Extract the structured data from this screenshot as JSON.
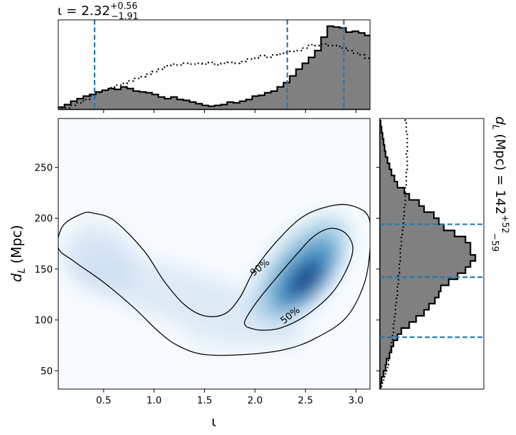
{
  "chart_data": {
    "type": "corner",
    "panels": {
      "joint": {
        "type": "heatmap",
        "xlabel": "ι",
        "ylabel": "d_L (Mpc)",
        "xlim": [
          0.05,
          3.14
        ],
        "ylim": [
          32,
          298
        ],
        "xticks": [
          0.5,
          1.0,
          1.5,
          2.0,
          2.5,
          3.0
        ],
        "xtick_labels": [
          "0.5",
          "1.0",
          "1.5",
          "2.0",
          "2.5",
          "3.0"
        ],
        "yticks": [
          50,
          100,
          150,
          200,
          250
        ],
        "ytick_labels": [
          "50",
          "100",
          "150",
          "200",
          "250"
        ],
        "colormap": "Blues",
        "peak": {
          "x": 2.5,
          "y": 140
        },
        "contours": [
          {
            "label": "90%",
            "label_pos": {
              "x": 1.95,
              "y": 147
            },
            "path": [
              [
                0.4,
                205
              ],
              [
                0.6,
                198
              ],
              [
                0.9,
                168
              ],
              [
                1.1,
                138
              ],
              [
                1.3,
                115
              ],
              [
                1.5,
                104
              ],
              [
                1.7,
                106
              ],
              [
                1.85,
                122
              ],
              [
                2.0,
                150
              ],
              [
                2.25,
                181
              ],
              [
                2.5,
                203
              ],
              [
                2.8,
                213
              ],
              [
                3.0,
                211
              ],
              [
                3.13,
                200
              ],
              [
                3.14,
                170
              ],
              [
                3.08,
                135
              ],
              [
                2.9,
                102
              ],
              [
                2.6,
                82
              ],
              [
                2.3,
                71
              ],
              [
                1.9,
                66
              ],
              [
                1.5,
                66
              ],
              [
                1.25,
                74
              ],
              [
                1.05,
                88
              ],
              [
                0.8,
                112
              ],
              [
                0.5,
                137
              ],
              [
                0.2,
                158
              ],
              [
                0.05,
                171
              ],
              [
                0.1,
                193
              ],
              [
                0.3,
                205
              ],
              [
                0.4,
                205
              ]
            ]
          },
          {
            "label": "50%",
            "label_pos": {
              "x": 2.25,
              "y": 100
            },
            "path": [
              [
                1.92,
                93
              ],
              [
                2.05,
                90
              ],
              [
                2.25,
                92
              ],
              [
                2.5,
                104
              ],
              [
                2.75,
                125
              ],
              [
                2.9,
                148
              ],
              [
                2.97,
                170
              ],
              [
                2.9,
                185
              ],
              [
                2.75,
                190
              ],
              [
                2.58,
                182
              ],
              [
                2.4,
                163
              ],
              [
                2.2,
                140
              ],
              [
                2.02,
                118
              ],
              [
                1.9,
                99
              ],
              [
                1.92,
                93
              ]
            ]
          }
        ]
      },
      "top_marginal": {
        "type": "histogram",
        "title_prefix": "ι = ",
        "median": "2.32",
        "upper": "+0.56",
        "lower": "−1.91",
        "ylim": [
          0,
          1
        ],
        "x_edges_start": 0.05,
        "bin_width": 0.062,
        "posterior_heights": [
          0.03,
          0.06,
          0.1,
          0.13,
          0.16,
          0.18,
          0.21,
          0.23,
          0.25,
          0.24,
          0.27,
          0.25,
          0.22,
          0.21,
          0.2,
          0.18,
          0.15,
          0.13,
          0.15,
          0.12,
          0.11,
          0.09,
          0.07,
          0.05,
          0.04,
          0.05,
          0.06,
          0.09,
          0.08,
          0.1,
          0.12,
          0.16,
          0.17,
          0.2,
          0.22,
          0.27,
          0.32,
          0.4,
          0.48,
          0.55,
          0.62,
          0.7,
          0.86,
          0.99,
          0.98,
          0.97,
          0.92,
          0.93,
          0.91,
          0.88,
          0.82,
          0.74,
          0.64,
          0.53,
          0.42,
          0.35,
          0.22,
          0.16,
          0.09,
          0.05,
          0.02,
          0.01
        ],
        "prior_heights": [
          0.01,
          0.02,
          0.05,
          0.08,
          0.12,
          0.16,
          0.2,
          0.23,
          0.26,
          0.29,
          0.31,
          0.34,
          0.37,
          0.39,
          0.42,
          0.45,
          0.48,
          0.52,
          0.54,
          0.53,
          0.55,
          0.54,
          0.55,
          0.54,
          0.56,
          0.53,
          0.55,
          0.56,
          0.55,
          0.57,
          0.6,
          0.61,
          0.64,
          0.62,
          0.65,
          0.66,
          0.68,
          0.69,
          0.7,
          0.73,
          0.77,
          0.76,
          0.78,
          0.76,
          0.76,
          0.73,
          0.7,
          0.67,
          0.65,
          0.61,
          0.57,
          0.53,
          0.48,
          0.44,
          0.4,
          0.36,
          0.31,
          0.26,
          0.21,
          0.16,
          0.11,
          0.05
        ],
        "quantile_lines": [
          0.41,
          2.32,
          2.88
        ]
      },
      "right_marginal": {
        "type": "histogram",
        "orientation": "horizontal",
        "title_prefix": "d",
        "title_sub": "L",
        "title_mid": " (Mpc) = ",
        "median": "142",
        "upper": "+52",
        "lower": "−59",
        "ylim": [
          32,
          298
        ],
        "bins_start": 32,
        "bin_width": 6,
        "posterior_widths": [
          0.01,
          0.02,
          0.04,
          0.06,
          0.07,
          0.1,
          0.12,
          0.14,
          0.18,
          0.22,
          0.3,
          0.37,
          0.45,
          0.5,
          0.56,
          0.6,
          0.62,
          0.7,
          0.79,
          0.87,
          0.92,
          0.97,
          0.92,
          0.92,
          0.87,
          0.76,
          0.65,
          0.6,
          0.55,
          0.45,
          0.4,
          0.3,
          0.25,
          0.18,
          0.15,
          0.12,
          0.1,
          0.08,
          0.06,
          0.05,
          0.04,
          0.03,
          0.02,
          0.01,
          0,
          0,
          0,
          0
        ],
        "prior_widths": [
          0.02,
          0.04,
          0.06,
          0.08,
          0.09,
          0.1,
          0.11,
          0.12,
          0.13,
          0.14,
          0.14,
          0.15,
          0.16,
          0.16,
          0.17,
          0.18,
          0.18,
          0.19,
          0.19,
          0.2,
          0.2,
          0.21,
          0.21,
          0.22,
          0.22,
          0.23,
          0.24,
          0.24,
          0.25,
          0.25,
          0.26,
          0.26,
          0.26,
          0.27,
          0.27,
          0.27,
          0.28,
          0.28,
          0.27,
          0.28,
          0.28,
          0.28,
          0.27,
          0.27,
          0.26,
          0.26,
          0.25,
          0.25
        ],
        "quantile_lines": [
          83,
          142,
          194
        ]
      }
    },
    "colors": {
      "hist_fill": "#808080",
      "hist_edge": "#000000",
      "quantile_line": "#1f77b4",
      "contour": "#000000"
    }
  }
}
